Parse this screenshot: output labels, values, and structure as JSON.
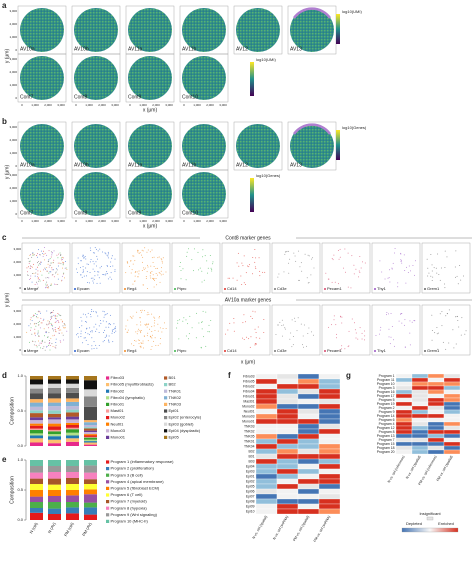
{
  "samples_row1": [
    "AV10a",
    "AV10b",
    "AV11a",
    "AV11b",
    "AV12",
    "AV13"
  ],
  "samples_row2": [
    "Cont7",
    "Cont8",
    "Cont9",
    "Cont10"
  ],
  "axis_ticks": [
    "0",
    "1,000",
    "2,000",
    "3,000"
  ],
  "x_label": "x (μm)",
  "y_label": "y (μm)",
  "a": {
    "letter": "a",
    "colorbar_label": "log10(UMI)"
  },
  "b": {
    "letter": "b",
    "colorbar_label": "log10(Genes)"
  },
  "c": {
    "letter": "c",
    "title_top": "Cont8 marker genes",
    "title_bottom": "AV10a marker genes",
    "markers": [
      "Merge",
      "Epcam",
      "Reg4",
      "Ptprc",
      "Cd14",
      "Cd3e",
      "Pecam1",
      "Thy1",
      "Grem1"
    ]
  },
  "d": {
    "letter": "d",
    "type": "bar",
    "y_label": "Composition",
    "ylim": [
      0,
      1
    ],
    "yticks": [
      {
        "value": 0,
        "label": "0.0"
      },
      {
        "value": 0.5,
        "label": "0.5"
      },
      {
        "value": 1,
        "label": "1.0"
      }
    ],
    "series": [
      {
        "name": "Fibro03",
        "color": "#e7298a",
        "values": [
          0.05,
          0.04,
          0.06,
          0.02
        ]
      },
      {
        "name": "Fibro05 (myofibroblasts)",
        "color": "#fdbf6f",
        "values": [
          0.06,
          0.05,
          0.05,
          0.03
        ]
      },
      {
        "name": "Fibro02",
        "color": "#1f78b4",
        "values": [
          0.04,
          0.05,
          0.04,
          0.02
        ]
      },
      {
        "name": "Fibro04 (lymphatic)",
        "color": "#b2df8a",
        "values": [
          0.03,
          0.03,
          0.04,
          0.02
        ]
      },
      {
        "name": "Fibro01",
        "color": "#33a02c",
        "values": [
          0.05,
          0.04,
          0.05,
          0.03
        ]
      },
      {
        "name": "Mast01",
        "color": "#fb9a99",
        "values": [
          0.02,
          0.02,
          0.02,
          0.01
        ]
      },
      {
        "name": "Mono02",
        "color": "#e31a1c",
        "values": [
          0.04,
          0.05,
          0.04,
          0.02
        ]
      },
      {
        "name": "Neut01",
        "color": "#ff7f00",
        "values": [
          0.03,
          0.04,
          0.03,
          0.02
        ]
      },
      {
        "name": "Mono03",
        "color": "#cab2d6",
        "values": [
          0.05,
          0.06,
          0.05,
          0.03
        ]
      },
      {
        "name": "Mono01",
        "color": "#6a3d9a",
        "values": [
          0.04,
          0.03,
          0.04,
          0.02
        ]
      },
      {
        "name": "B01",
        "color": "#b15928",
        "values": [
          0.06,
          0.05,
          0.06,
          0.03
        ]
      },
      {
        "name": "B02",
        "color": "#8dd3c7",
        "values": [
          0.04,
          0.05,
          0.04,
          0.02
        ]
      },
      {
        "name": "TNK01",
        "color": "#bebada",
        "values": [
          0.05,
          0.06,
          0.05,
          0.03
        ]
      },
      {
        "name": "TNK02",
        "color": "#80b1d3",
        "values": [
          0.06,
          0.05,
          0.06,
          0.04
        ]
      },
      {
        "name": "TNK03",
        "color": "#fdb462",
        "values": [
          0.05,
          0.06,
          0.05,
          0.03
        ]
      },
      {
        "name": "Epi01",
        "color": "#4d4d4d",
        "values": [
          0.08,
          0.07,
          0.08,
          0.19
        ]
      },
      {
        "name": "Epi02 (enterocyte)",
        "color": "#878787",
        "values": [
          0.07,
          0.08,
          0.07,
          0.15
        ]
      },
      {
        "name": "Epi03 (goblet)",
        "color": "#d9d9d9",
        "values": [
          0.06,
          0.06,
          0.06,
          0.1
        ]
      },
      {
        "name": "Epi04 (dysplastic)",
        "color": "#111111",
        "values": [
          0.07,
          0.06,
          0.06,
          0.13
        ]
      },
      {
        "name": "Epi05",
        "color": "#a6761d",
        "values": [
          0.05,
          0.05,
          0.05,
          0.06
        ]
      }
    ]
  },
  "e": {
    "letter": "e",
    "type": "bar",
    "y_label": "Composition",
    "categories": [
      "N (ctrl)",
      "N (AV)",
      "PM (ctrl)",
      "PM (AV)"
    ],
    "ylim": [
      0,
      1
    ],
    "yticks": [
      {
        "value": 0,
        "label": "0.0"
      },
      {
        "value": 0.5,
        "label": "0.5"
      },
      {
        "value": 1,
        "label": "1.0"
      }
    ],
    "series": [
      {
        "name": "Program 1 (inflammatory response)",
        "color": "#e41a1c",
        "values": [
          0.12,
          0.1,
          0.11,
          0.09
        ]
      },
      {
        "name": "Program 2 (proliferation)",
        "color": "#377eb8",
        "values": [
          0.08,
          0.09,
          0.1,
          0.12
        ]
      },
      {
        "name": "Program 3 (B cell)",
        "color": "#4daf4a",
        "values": [
          0.1,
          0.11,
          0.09,
          0.08
        ]
      },
      {
        "name": "Program 4 (apical membrane)",
        "color": "#984ea3",
        "values": [
          0.09,
          0.1,
          0.11,
          0.14
        ]
      },
      {
        "name": "Program 5 (fibroblast ECM)",
        "color": "#ff7f00",
        "values": [
          0.11,
          0.1,
          0.09,
          0.08
        ]
      },
      {
        "name": "Program 6 (T cell)",
        "color": "#ffff33",
        "values": [
          0.1,
          0.09,
          0.1,
          0.09
        ]
      },
      {
        "name": "Program 7 (myeloid)",
        "color": "#a65628",
        "values": [
          0.09,
          0.1,
          0.1,
          0.08
        ]
      },
      {
        "name": "Program 8 (hypoxia)",
        "color": "#f781bf",
        "values": [
          0.1,
          0.11,
          0.1,
          0.11
        ]
      },
      {
        "name": "Program 9 (Wnt signaling)",
        "color": "#999999",
        "values": [
          0.11,
          0.1,
          0.1,
          0.12
        ]
      },
      {
        "name": "Program 10 (MHC-II)",
        "color": "#66c2a5",
        "values": [
          0.1,
          0.1,
          0.1,
          0.09
        ]
      }
    ]
  },
  "f": {
    "letter": "f",
    "rows": [
      "Fibro03",
      "Fibro05",
      "Fibro02",
      "Fibro04",
      "Fibro01",
      "Mast01",
      "Mono02",
      "Neut01",
      "Mono03",
      "Mono01",
      "TNK03",
      "TNK02",
      "TNK05",
      "TNK01",
      "TNK04",
      "B02",
      "B01",
      "B03",
      "Epi04",
      "Epi03",
      "Epi01",
      "Epi02",
      "Epi05",
      "Epi06",
      "Epi07",
      "Epi08",
      "Epi09",
      "Epi10"
    ],
    "columns": [
      "N vs. ctrl (spatial)",
      "N vs. ctrl (snRNA)",
      "PM vs. ctrl (spatial)",
      "PM vs. ctrl (snRNA)"
    ]
  },
  "g": {
    "letter": "g",
    "rows": [
      "Program 1",
      "Program 11",
      "Program 10",
      "Program 3",
      "Program 16",
      "Program 17",
      "Program 5",
      "Program 19",
      "Program 2",
      "Program 9",
      "Program 14",
      "Program 6",
      "Program 4",
      "Program 12",
      "Program 8",
      "Program 13",
      "Program 7",
      "Program 15",
      "Program 18",
      "Program 20"
    ],
    "columns": [
      "N vs. ctrl (reference)",
      "N vs. ctrl (spatial)",
      "PM vs. ctrl (reference)",
      "PM vs. ctrl (spatial)"
    ],
    "legend_title": "Insignificant",
    "legend_low": "Depleted",
    "legend_high": "Enriched"
  }
}
